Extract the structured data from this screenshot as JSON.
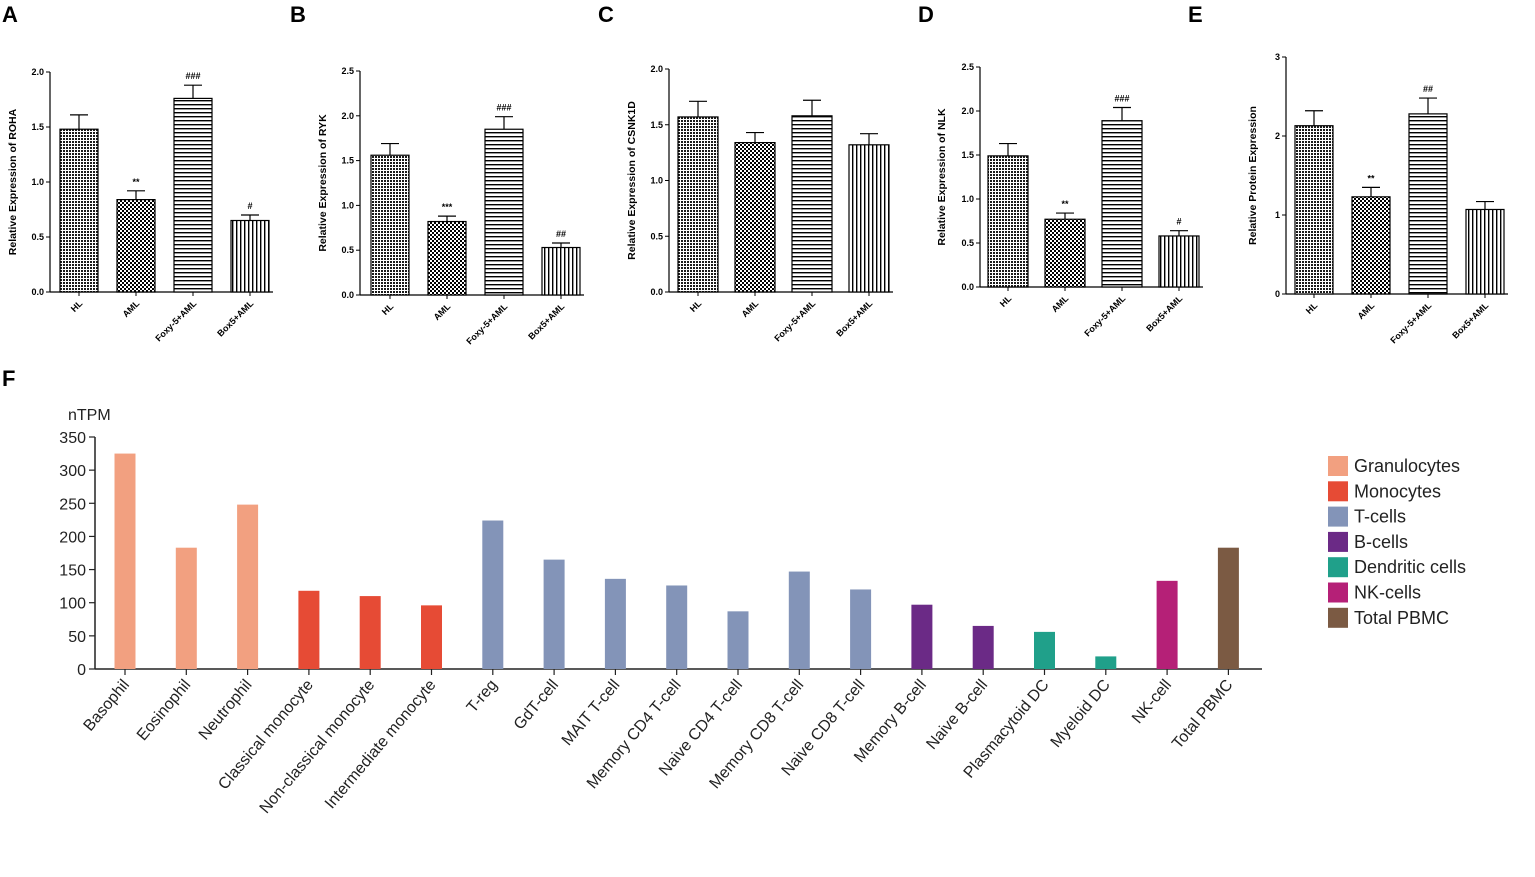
{
  "chart_data": [
    {
      "panel": "A",
      "type": "bar",
      "ylabel": "Relative Expression of ROHA",
      "categories": [
        "HL",
        "AML",
        "Foxy-5+AML",
        "Box5+AML"
      ],
      "values": [
        1.48,
        0.84,
        1.76,
        0.65
      ],
      "errors": [
        0.13,
        0.08,
        0.12,
        0.05
      ],
      "significance": [
        "",
        "**",
        "###",
        "#"
      ],
      "ylim": [
        0,
        2.0
      ],
      "yticks": [
        "0.0",
        "0.5",
        "1.0",
        "1.5",
        "2.0"
      ]
    },
    {
      "panel": "B",
      "type": "bar",
      "ylabel": "Relative Expression of RYK",
      "categories": [
        "HL",
        "AML",
        "Foxy-5+AML",
        "Box5+AML"
      ],
      "values": [
        1.56,
        0.82,
        1.85,
        0.53
      ],
      "errors": [
        0.13,
        0.06,
        0.14,
        0.05
      ],
      "significance": [
        "",
        "***",
        "###",
        "##"
      ],
      "ylim": [
        0,
        2.5
      ],
      "yticks": [
        "0.0",
        "0.5",
        "1.0",
        "1.5",
        "2.0",
        "2.5"
      ]
    },
    {
      "panel": "C",
      "type": "bar",
      "ylabel": "Relative Expression of CSNK1D",
      "categories": [
        "HL",
        "AML",
        "Foxy-5+AML",
        "Box5+AML"
      ],
      "values": [
        1.57,
        1.34,
        1.58,
        1.32
      ],
      "errors": [
        0.14,
        0.09,
        0.14,
        0.1
      ],
      "significance": [
        "",
        "",
        "",
        ""
      ],
      "ylim": [
        0,
        2.0
      ],
      "yticks": [
        "0.0",
        "0.5",
        "1.0",
        "1.5",
        "2.0"
      ]
    },
    {
      "panel": "D",
      "type": "bar",
      "ylabel": "Relative Expression of NLK",
      "categories": [
        "HL",
        "AML",
        "Foxy-5+AML",
        "Box5+AML"
      ],
      "values": [
        1.49,
        0.77,
        1.89,
        0.58
      ],
      "errors": [
        0.14,
        0.07,
        0.15,
        0.06
      ],
      "significance": [
        "",
        "**",
        "###",
        "#"
      ],
      "ylim": [
        0,
        2.5
      ],
      "yticks": [
        "0.0",
        "0.5",
        "1.0",
        "1.5",
        "2.0",
        "2.5"
      ]
    },
    {
      "panel": "E",
      "type": "bar",
      "ylabel": "Relative Protein Expression",
      "categories": [
        "HL",
        "AML",
        "Foxy-5+AML",
        "Box5+AML"
      ],
      "values": [
        2.13,
        1.23,
        2.28,
        1.07
      ],
      "errors": [
        0.19,
        0.12,
        0.2,
        0.1
      ],
      "significance": [
        "",
        "**",
        "##",
        ""
      ],
      "ylim": [
        0,
        3
      ],
      "yticks": [
        "0",
        "1",
        "2",
        "3"
      ]
    },
    {
      "panel": "F",
      "type": "bar",
      "ylabel": "nTPM",
      "categories": [
        "Basophil",
        "Eosinophil",
        "Neutrophil",
        "Classical monocyte",
        "Non-classical monocyte",
        "Intermediate monocyte",
        "T-reg",
        "GdT-cell",
        "MAIT T-cell",
        "Memory CD4 T-cell",
        "Naive CD4 T-cell",
        "Memory CD8 T-cell",
        "Naive CD8 T-cell",
        "Memory B-cell",
        "Naive B-cell",
        "Plasmacytoid DC",
        "Myeloid DC",
        "NK-cell",
        "Total PBMC"
      ],
      "values": [
        325,
        183,
        248,
        118,
        110,
        96,
        224,
        165,
        136,
        126,
        87,
        147,
        120,
        97,
        65,
        56,
        19,
        133,
        183
      ],
      "groups": [
        "Granulocytes",
        "Granulocytes",
        "Granulocytes",
        "Monocytes",
        "Monocytes",
        "Monocytes",
        "T-cells",
        "T-cells",
        "T-cells",
        "T-cells",
        "T-cells",
        "T-cells",
        "T-cells",
        "B-cells",
        "B-cells",
        "Dendritic cells",
        "Dendritic cells",
        "NK-cells",
        "Total PBMC"
      ],
      "ylim": [
        0,
        350
      ],
      "yticks": [
        "0",
        "50",
        "100",
        "150",
        "200",
        "250",
        "300",
        "350"
      ],
      "legend": [
        {
          "label": "Granulocytes",
          "color": "#f2a080"
        },
        {
          "label": "Monocytes",
          "color": "#e64b35"
        },
        {
          "label": "T-cells",
          "color": "#8394b8"
        },
        {
          "label": "B-cells",
          "color": "#6b2a86"
        },
        {
          "label": "Dendritic cells",
          "color": "#20a08a"
        },
        {
          "label": "NK-cells",
          "color": "#b52077"
        },
        {
          "label": "Total PBMC",
          "color": "#7b5a43"
        }
      ],
      "legend_position": "right"
    }
  ]
}
